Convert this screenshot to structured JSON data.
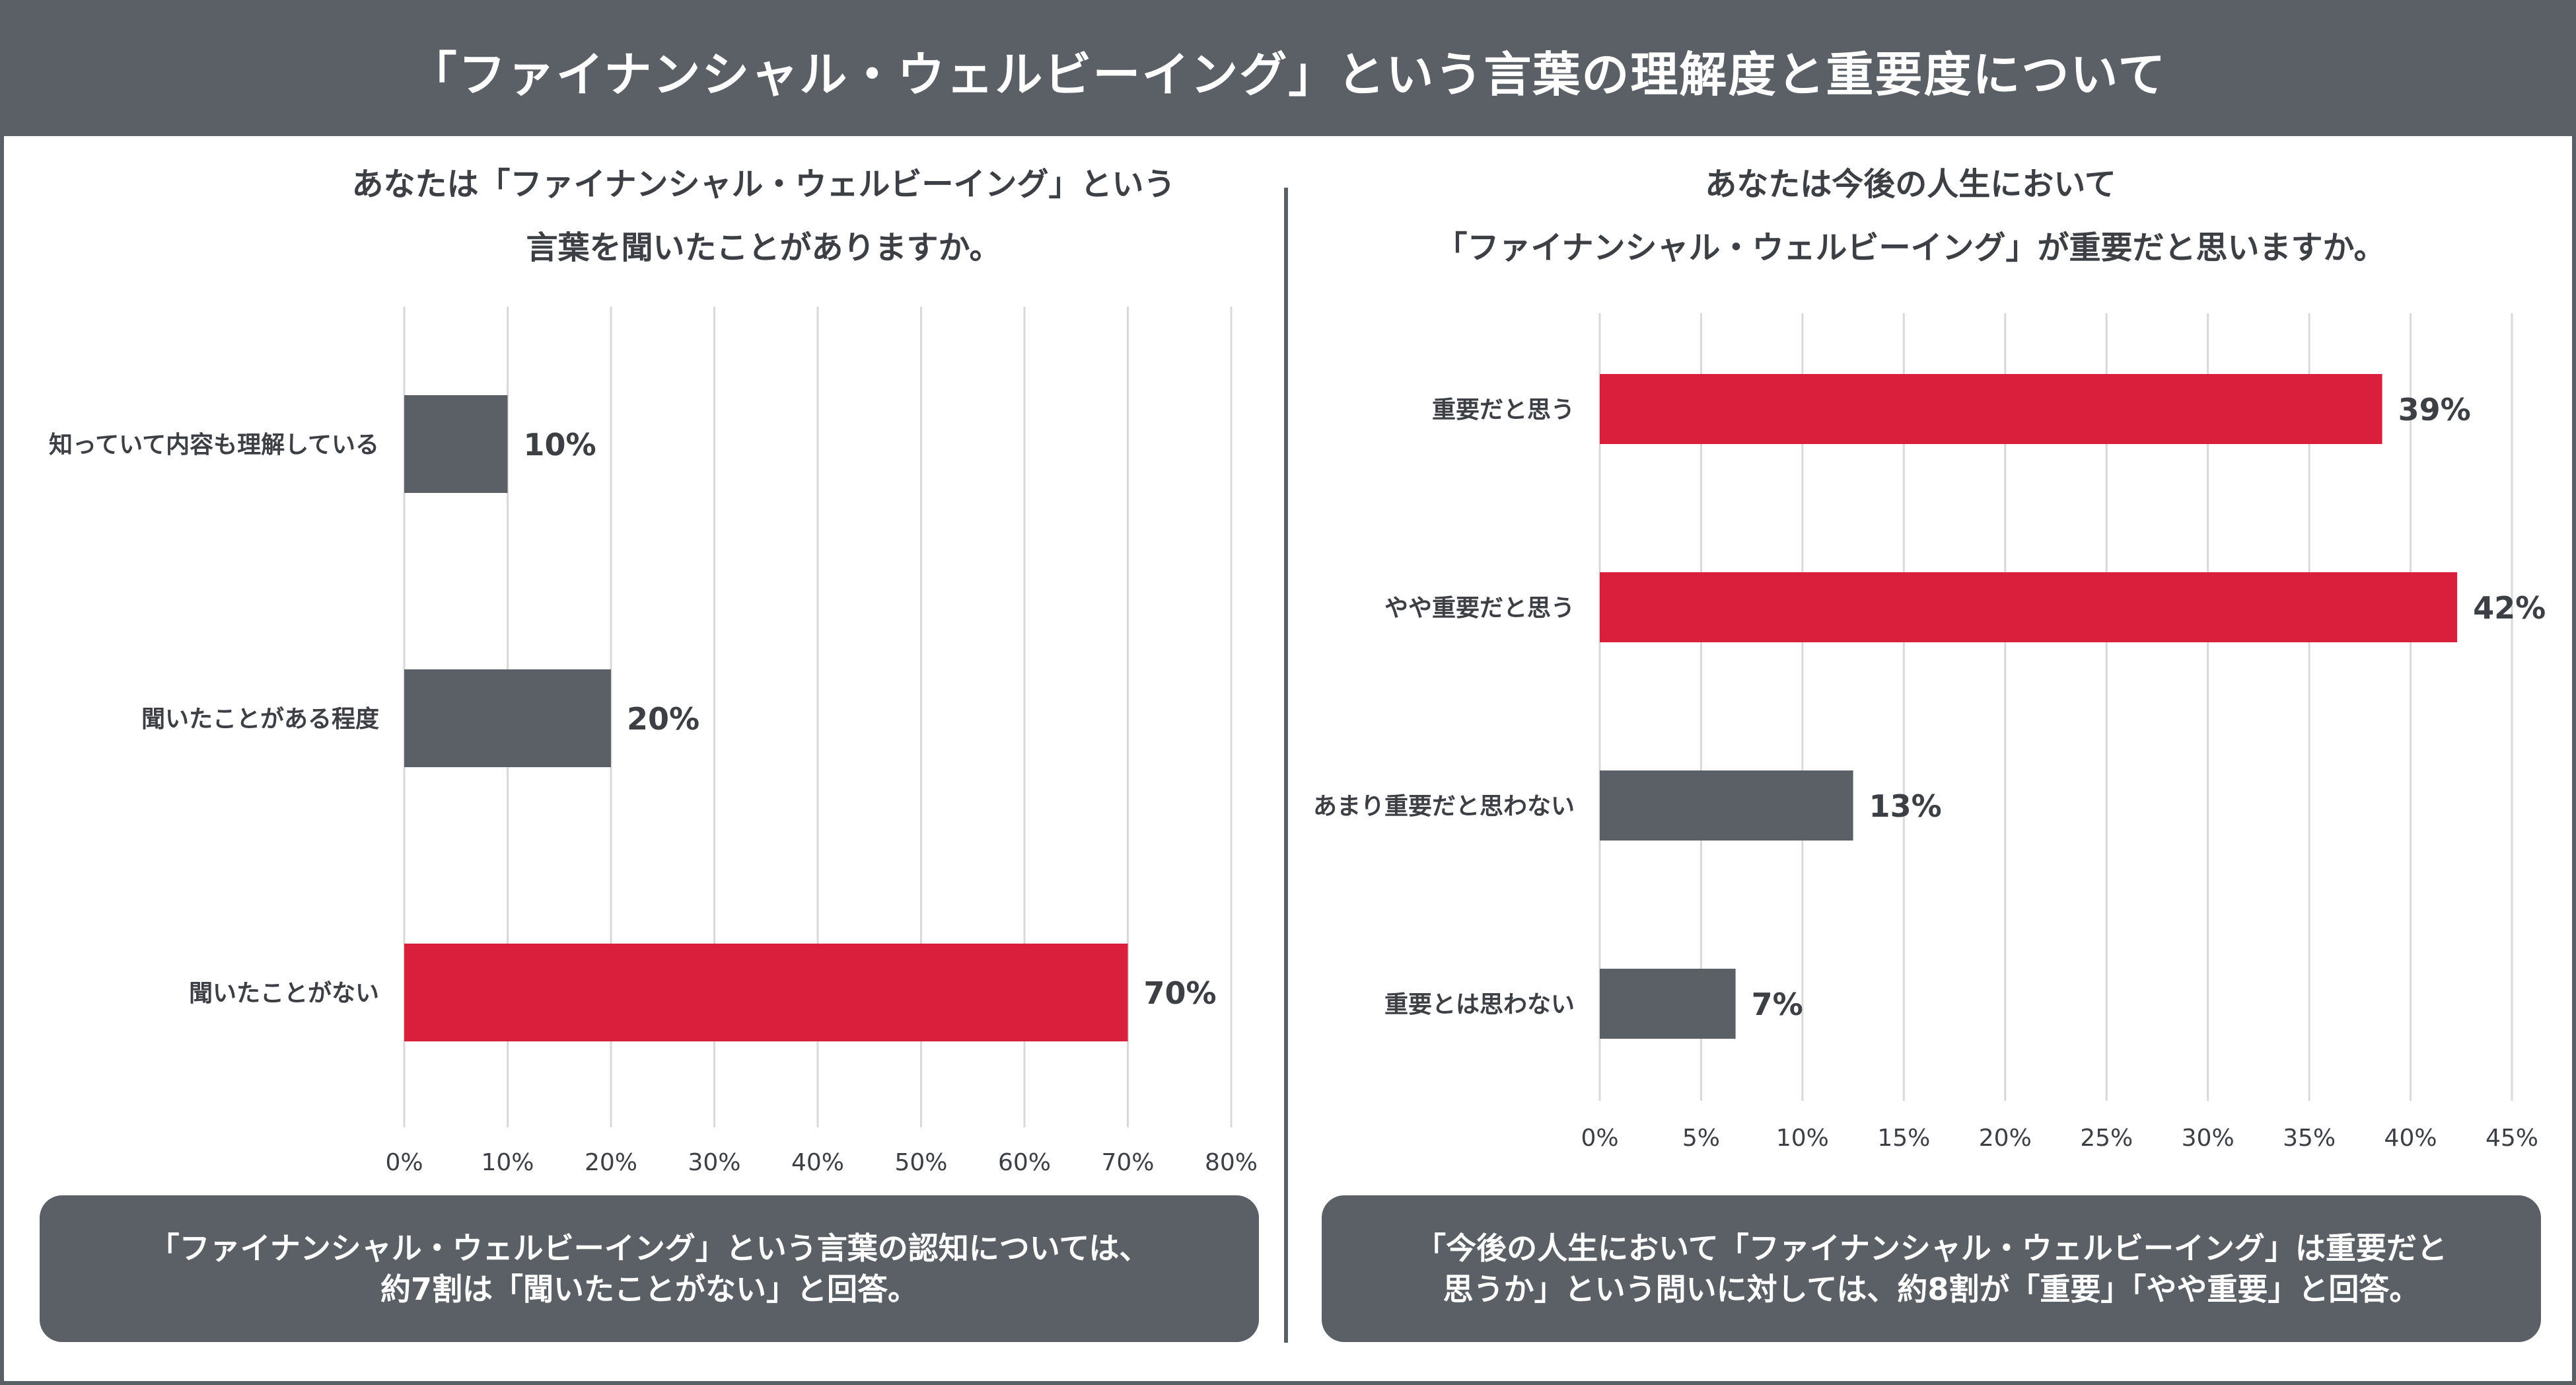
{
  "header": {
    "title": "「ファイナンシャル・ウェルビーイング」という言葉の理解度と重要度について"
  },
  "colors": {
    "red": "#d91f3b",
    "gray": "#5b5f66",
    "grid": "#d9d9d9",
    "text": "#3c3f44"
  },
  "left_panel": {
    "question_line1": "あなたは「ファイナンシャル・ウェルビーイング」という",
    "question_line2": "言葉を聞いたことがありますか。",
    "summary_line1": "「ファイナンシャル・ウェルビーイング」という言葉の認知については、",
    "summary_line2": "約7割は「聞いたことがない」と回答。"
  },
  "right_panel": {
    "question_line1": "あなたは今後の人生において",
    "question_line2": "「ファイナンシャル・ウェルビーイング」が重要だと思いますか。",
    "summary_line1": "「今後の人生において「ファイナンシャル・ウェルビーイング」は重要だと",
    "summary_line2": "思うか」という問いに対しては、約8割が「重要」「やや重要」と回答。"
  },
  "chart_data": [
    {
      "type": "bar",
      "orientation": "horizontal",
      "title": "あなたは「ファイナンシャル・ウェルビーイング」という言葉を聞いたことがありますか。",
      "categories": [
        "知っていて内容も理解している",
        "聞いたことがある程度",
        "聞いたことがない"
      ],
      "values": [
        10,
        20,
        70
      ],
      "value_labels": [
        "10%",
        "20%",
        "70%"
      ],
      "bar_colors": [
        "gray",
        "gray",
        "red"
      ],
      "xlim": [
        0,
        80
      ],
      "xticks": [
        0,
        10,
        20,
        30,
        40,
        50,
        60,
        70,
        80
      ],
      "xtick_labels": [
        "0%",
        "10%",
        "20%",
        "30%",
        "40%",
        "50%",
        "60%",
        "70%",
        "80%"
      ],
      "grid": true
    },
    {
      "type": "bar",
      "orientation": "horizontal",
      "title": "あなたは今後の人生において「ファイナンシャル・ウェルビーイング」が重要だと思いますか。",
      "categories": [
        "重要だと思う",
        "やや重要だと思う",
        "あまり重要だと思わない",
        "重要とは思わない"
      ],
      "values": [
        38.6,
        42.3,
        12.5,
        6.7
      ],
      "value_labels": [
        "39%",
        "42%",
        "13%",
        "7%"
      ],
      "bar_colors": [
        "red",
        "red",
        "gray",
        "gray"
      ],
      "xlim": [
        0,
        45
      ],
      "xticks": [
        0,
        5,
        10,
        15,
        20,
        25,
        30,
        35,
        40,
        45
      ],
      "xtick_labels": [
        "0%",
        "5%",
        "10%",
        "15%",
        "20%",
        "25%",
        "30%",
        "35%",
        "40%",
        "45%"
      ],
      "grid": true
    }
  ]
}
